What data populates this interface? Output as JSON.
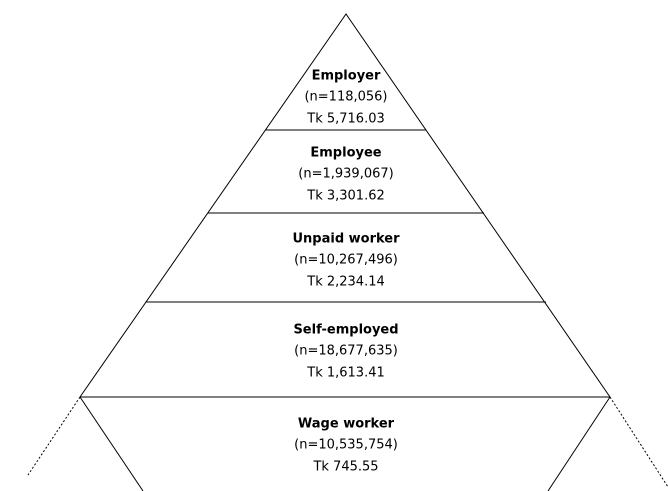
{
  "tiers": [
    {
      "label": "Employer",
      "count": "(n=118,056)",
      "income": "Tk 5,716.03"
    },
    {
      "label": "Employee",
      "count": "(n=1,939,067)",
      "income": "Tk 3,301.62"
    },
    {
      "label": "Unpaid worker",
      "count": "(n=10,267,496)",
      "income": "Tk 2,234.14"
    },
    {
      "label": "Self-employed",
      "count": "(n=18,677,635)",
      "income": "Tk 1,613.41"
    },
    {
      "label": "Wage worker",
      "count": "(n=10,535,754)",
      "income": "Tk 745.55"
    }
  ]
}
